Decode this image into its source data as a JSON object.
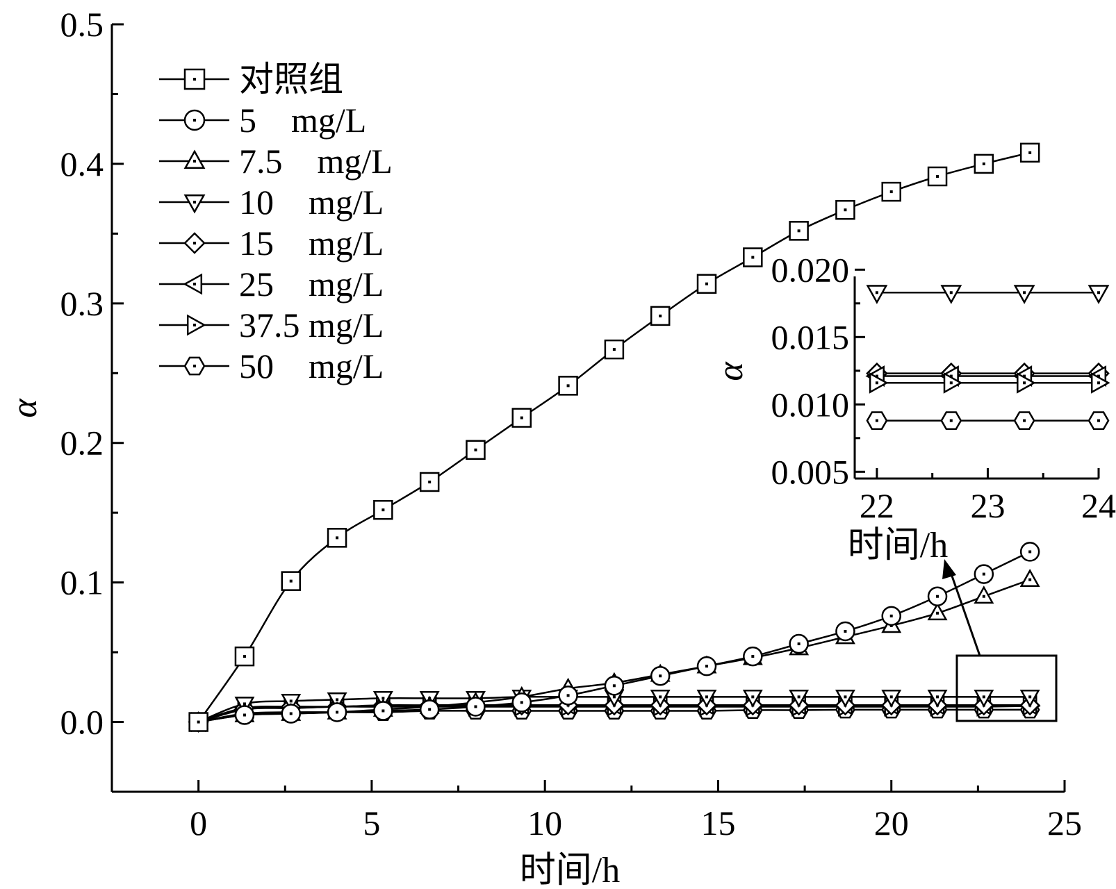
{
  "chart_data": [
    {
      "type": "line",
      "xlabel": "时间/h",
      "ylabel": "α",
      "xlim": [
        -2.5,
        25
      ],
      "ylim": [
        -0.05,
        0.5
      ],
      "xticks": [
        "0",
        "5",
        "10",
        "15",
        "20",
        "25"
      ],
      "yticks": [
        "0.0",
        "0.1",
        "0.2",
        "0.3",
        "0.4",
        "0.5"
      ],
      "legend_position": "top-left",
      "x": [
        0,
        1.33,
        2.67,
        4.0,
        5.33,
        6.67,
        8.0,
        9.33,
        10.67,
        12.0,
        13.33,
        14.67,
        16.0,
        17.33,
        18.67,
        20.0,
        21.33,
        22.67,
        24.0
      ],
      "series": [
        {
          "name": "对照组",
          "marker": "square",
          "values": [
            0.0,
            0.047,
            0.101,
            0.132,
            0.152,
            0.172,
            0.195,
            0.218,
            0.241,
            0.267,
            0.291,
            0.314,
            0.333,
            0.352,
            0.367,
            0.38,
            0.391,
            0.4,
            0.408
          ]
        },
        {
          "name": "5    mg/L",
          "marker": "circle",
          "values": [
            0.0,
            0.005,
            0.006,
            0.007,
            0.008,
            0.009,
            0.011,
            0.014,
            0.019,
            0.026,
            0.033,
            0.04,
            0.047,
            0.056,
            0.065,
            0.076,
            0.09,
            0.106,
            0.122
          ]
        },
        {
          "name": "7.5    mg/L",
          "marker": "triangle-up",
          "values": [
            0.0,
            0.005,
            0.006,
            0.007,
            0.009,
            0.011,
            0.014,
            0.018,
            0.024,
            0.028,
            0.034,
            0.04,
            0.046,
            0.053,
            0.061,
            0.069,
            0.078,
            0.09,
            0.102
          ]
        },
        {
          "name": "10    mg/L",
          "marker": "triangle-down",
          "values": [
            0.0,
            0.013,
            0.015,
            0.016,
            0.017,
            0.017,
            0.017,
            0.018,
            0.018,
            0.018,
            0.018,
            0.018,
            0.018,
            0.018,
            0.018,
            0.018,
            0.018,
            0.018,
            0.018
          ]
        },
        {
          "name": "15    mg/L",
          "marker": "diamond",
          "values": [
            0.0,
            0.01,
            0.011,
            0.011,
            0.012,
            0.012,
            0.012,
            0.012,
            0.012,
            0.012,
            0.012,
            0.012,
            0.012,
            0.012,
            0.012,
            0.012,
            0.012,
            0.012,
            0.012
          ]
        },
        {
          "name": "25    mg/L",
          "marker": "triangle-left",
          "values": [
            0.0,
            0.009,
            0.01,
            0.011,
            0.011,
            0.012,
            0.012,
            0.012,
            0.012,
            0.012,
            0.012,
            0.012,
            0.012,
            0.012,
            0.012,
            0.012,
            0.012,
            0.012,
            0.012
          ]
        },
        {
          "name": "37.5 mg/L",
          "marker": "triangle-right",
          "values": [
            0.0,
            0.01,
            0.01,
            0.011,
            0.011,
            0.011,
            0.011,
            0.011,
            0.011,
            0.011,
            0.011,
            0.011,
            0.011,
            0.011,
            0.011,
            0.011,
            0.011,
            0.011,
            0.0115
          ]
        },
        {
          "name": "50    mg/L",
          "marker": "hexagon",
          "values": [
            0.0,
            0.006,
            0.007,
            0.007,
            0.007,
            0.008,
            0.008,
            0.008,
            0.008,
            0.008,
            0.008,
            0.008,
            0.0085,
            0.0085,
            0.0088,
            0.0088,
            0.0088,
            0.0088,
            0.0088
          ]
        }
      ]
    },
    {
      "type": "line",
      "inset": true,
      "xlabel": "时间/h",
      "ylabel": "α",
      "xlim": [
        21.8,
        24
      ],
      "ylim": [
        0.0045,
        0.0195
      ],
      "xticks": [
        "22",
        "23",
        "24"
      ],
      "yticks": [
        "0.005",
        "0.010",
        "0.015",
        "0.020"
      ],
      "x": [
        22.0,
        22.67,
        23.33,
        24.0
      ],
      "series": [
        {
          "name": "10    mg/L",
          "marker": "triangle-down",
          "values": [
            0.0183,
            0.0183,
            0.0183,
            0.0183
          ]
        },
        {
          "name": "15    mg/L",
          "marker": "diamond",
          "values": [
            0.0123,
            0.0123,
            0.0123,
            0.0123
          ]
        },
        {
          "name": "25    mg/L",
          "marker": "triangle-left",
          "values": [
            0.0121,
            0.0121,
            0.0121,
            0.0121
          ]
        },
        {
          "name": "37.5 mg/L",
          "marker": "triangle-right",
          "values": [
            0.0116,
            0.0116,
            0.0116,
            0.0116
          ]
        },
        {
          "name": "50    mg/L",
          "marker": "hexagon",
          "values": [
            0.0088,
            0.0088,
            0.0088,
            0.0088
          ]
        }
      ]
    }
  ]
}
